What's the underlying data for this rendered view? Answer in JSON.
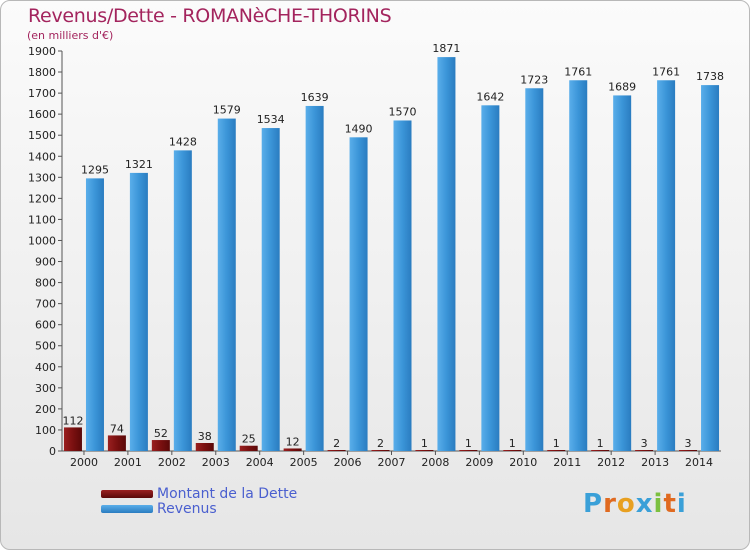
{
  "header": {
    "title": "Revenus/Dette - ROMANèCHE-THORINS",
    "subtitle": "(en milliers d'€)"
  },
  "legend": {
    "dette_label": "Montant de la Dette",
    "revenus_label": "Revenus"
  },
  "brand": {
    "name": "Proxiti"
  },
  "colors": {
    "dette": "#7a1010",
    "revenus": "#3b95d8",
    "title": "#a3245d",
    "legend_text": "#4a5fcf"
  },
  "chart_data": {
    "type": "bar",
    "title": "Revenus/Dette - ROMANèCHE-THORINS",
    "ylabel": "(en milliers d'€)",
    "xlabel": "",
    "ylim": [
      0,
      1900
    ],
    "ytick_step": 100,
    "grid": false,
    "legend_position": "bottom-left",
    "categories": [
      "2000",
      "2001",
      "2002",
      "2003",
      "2004",
      "2005",
      "2006",
      "2007",
      "2008",
      "2009",
      "2010",
      "2011",
      "2012",
      "2013",
      "2014"
    ],
    "series": [
      {
        "name": "Montant de la Dette",
        "values": [
          112,
          74,
          52,
          38,
          25,
          12,
          2,
          2,
          1,
          1,
          1,
          1,
          1,
          3,
          3
        ]
      },
      {
        "name": "Revenus",
        "values": [
          1295,
          1321,
          1428,
          1579,
          1534,
          1639,
          1490,
          1570,
          1871,
          1642,
          1723,
          1761,
          1689,
          1761,
          1738
        ]
      }
    ]
  }
}
